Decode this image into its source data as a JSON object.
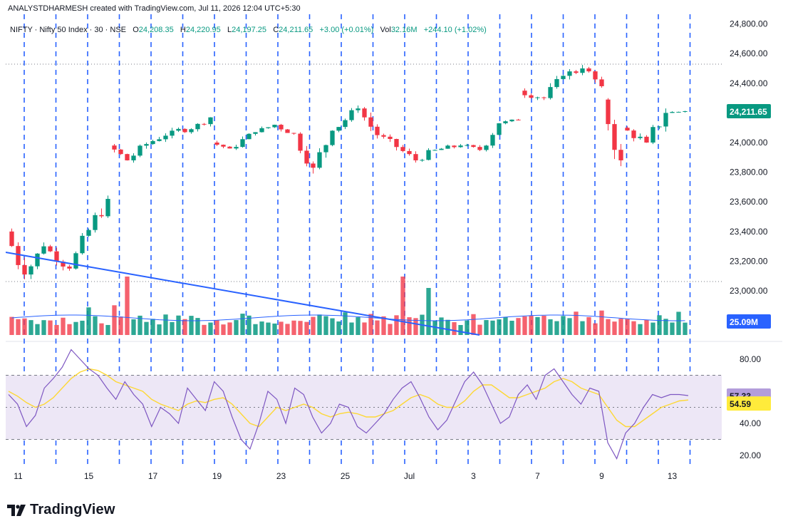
{
  "attribution": "ANALYSTDHARMESH created with TradingView.com, Jul 11, 2026 12:04 UTC+5:30",
  "legend": {
    "symbol": "NIFTY · Nifty 50 Index · 30 · NSE",
    "open_label": "O",
    "open": "24,208.35",
    "high_label": "H",
    "high": "24,220.95",
    "low_label": "L",
    "low": "24,197.25",
    "close_label": "C",
    "close": "24,211.65",
    "change": "+3.00 (+0.01%)",
    "vol_label": "Vol",
    "vol": "32.16M",
    "vol_change": "+244.10 (+1.02%)"
  },
  "logo": {
    "text": "TradingView"
  },
  "colors": {
    "up": "#089981",
    "down": "#f23645",
    "trendline": "#2962ff",
    "session_line": "#2962ff",
    "vol_ma": "#2962ff",
    "rsi": "#7e57c2",
    "rsi_ma": "#fdd835",
    "rsi_band": "#ede7f6",
    "price_badge": "#089981",
    "vol_badge": "#2962ff",
    "rsi_badge": "#b39ddb",
    "rsi_ma_badge": "#ffeb3b"
  },
  "chart_data": [
    {
      "type": "candlestick",
      "symbol": "NIFTY",
      "timeframe": "30",
      "ylim": [
        22900,
        24800
      ],
      "y_ticks": [
        "24,800.00",
        "24,600.00",
        "24,400.00",
        "24,200.00",
        "24,000.00",
        "23,800.00",
        "23,600.00",
        "23,400.00",
        "23,200.00",
        "23,000.00"
      ],
      "y_tick_values": [
        24800,
        24600,
        24400,
        24200,
        24000,
        23800,
        23600,
        23400,
        23200,
        23000
      ],
      "current_price_label": "24,211.65",
      "current_price": 24211.65,
      "x_ticks": [
        "11",
        "15",
        "17",
        "19",
        "23",
        "25",
        "Jul",
        "3",
        "7",
        "9",
        "13"
      ],
      "x_tick_bar_index": [
        1,
        12,
        22,
        32,
        42,
        52,
        62,
        72,
        82,
        92,
        103
      ],
      "sessions": [
        {
          "o": 23400,
          "h": 23420,
          "l": 23050,
          "c": 23110
        },
        {
          "o": 23110,
          "h": 23330,
          "l": 23070,
          "c": 23300
        },
        {
          "o": 23300,
          "h": 23310,
          "l": 23130,
          "c": 23150
        },
        {
          "o": 23150,
          "h": 23420,
          "l": 23140,
          "c": 23410
        },
        {
          "o": 23410,
          "h": 23650,
          "l": 23330,
          "c": 23620
        },
        {
          "o": 23980,
          "h": 24000,
          "l": 23830,
          "c": 23880
        },
        {
          "o": 23880,
          "h": 24010,
          "l": 23850,
          "c": 23990
        },
        {
          "o": 23990,
          "h": 24110,
          "l": 23970,
          "c": 24080
        },
        {
          "o": 24080,
          "h": 24150,
          "l": 24050,
          "c": 24090
        },
        {
          "o": 24090,
          "h": 24180,
          "l": 24070,
          "c": 24170
        },
        {
          "o": 24000,
          "h": 24020,
          "l": 23930,
          "c": 23960
        },
        {
          "o": 23960,
          "h": 24090,
          "l": 23950,
          "c": 24070
        },
        {
          "o": 24070,
          "h": 24150,
          "l": 24060,
          "c": 24120
        },
        {
          "o": 24120,
          "h": 24140,
          "l": 24020,
          "c": 24060
        },
        {
          "o": 24060,
          "h": 24070,
          "l": 23790,
          "c": 23830
        },
        {
          "o": 23830,
          "h": 24100,
          "l": 23820,
          "c": 24080
        },
        {
          "o": 24080,
          "h": 24250,
          "l": 24070,
          "c": 24230
        },
        {
          "o": 24230,
          "h": 24240,
          "l": 24020,
          "c": 24050
        },
        {
          "o": 24050,
          "h": 24060,
          "l": 23900,
          "c": 23970
        },
        {
          "o": 23970,
          "h": 24000,
          "l": 23860,
          "c": 23880
        },
        {
          "o": 23880,
          "h": 23980,
          "l": 23850,
          "c": 23950
        },
        {
          "o": 23950,
          "h": 24020,
          "l": 23930,
          "c": 23980
        },
        {
          "o": 23980,
          "h": 24020,
          "l": 23930,
          "c": 23950
        },
        {
          "o": 23950,
          "h": 24150,
          "l": 23940,
          "c": 24130
        },
        {
          "o": 24130,
          "h": 24170,
          "l": 24090,
          "c": 24150
        },
        {
          "o": 24350,
          "h": 24400,
          "l": 24260,
          "c": 24300
        },
        {
          "o": 24300,
          "h": 24470,
          "l": 24290,
          "c": 24450
        },
        {
          "o": 24450,
          "h": 24530,
          "l": 24360,
          "c": 24500
        },
        {
          "o": 24500,
          "h": 24510,
          "l": 24310,
          "c": 24380
        },
        {
          "o": 24290,
          "h": 24300,
          "l": 23800,
          "c": 23880
        },
        {
          "o": 24100,
          "h": 24130,
          "l": 23970,
          "c": 24000
        },
        {
          "o": 24000,
          "h": 24230,
          "l": 23950,
          "c": 24200
        },
        {
          "o": 24200,
          "h": 24225,
          "l": 24165,
          "c": 24211.65
        }
      ]
    },
    {
      "type": "bar",
      "name": "Volume",
      "last_value_label": "25.09M",
      "note": "volume histogram overlaid at bottom of price pane"
    },
    {
      "type": "line",
      "name": "RSI",
      "ylim": [
        10,
        95
      ],
      "y_ticks": [
        "80.00",
        "40.00",
        "20.00"
      ],
      "y_tick_values": [
        80,
        40,
        20
      ],
      "bands": [
        30,
        70
      ],
      "midline": 50,
      "rsi_value_label": "57.33",
      "rsi_value": 57.33,
      "rsi_ma_value_label": "54.59",
      "rsi_ma_value": 54.59,
      "rsi_points": [
        58,
        52,
        38,
        45,
        62,
        68,
        75,
        86,
        80,
        74,
        70,
        62,
        55,
        66,
        58,
        52,
        38,
        50,
        46,
        40,
        62,
        55,
        48,
        66,
        60,
        44,
        30,
        24,
        40,
        60,
        55,
        40,
        62,
        58,
        44,
        34,
        40,
        52,
        50,
        38,
        34,
        40,
        46,
        55,
        62,
        66,
        56,
        44,
        36,
        42,
        54,
        66,
        72,
        64,
        52,
        40,
        44,
        58,
        64,
        55,
        70,
        74,
        66,
        58,
        52,
        62,
        60,
        28,
        18,
        34,
        40,
        50,
        58,
        56,
        58,
        58,
        57.33
      ],
      "rsi_ma_points": [
        60,
        57,
        53,
        50,
        52,
        56,
        62,
        68,
        72,
        74,
        73,
        70,
        66,
        64,
        62,
        60,
        55,
        52,
        50,
        48,
        52,
        54,
        53,
        55,
        56,
        52,
        46,
        40,
        38,
        44,
        50,
        48,
        50,
        52,
        50,
        46,
        44,
        46,
        47,
        46,
        44,
        44,
        46,
        48,
        52,
        56,
        58,
        56,
        52,
        50,
        50,
        54,
        60,
        64,
        64,
        60,
        56,
        56,
        58,
        60,
        62,
        66,
        68,
        66,
        62,
        60,
        58,
        50,
        42,
        38,
        38,
        42,
        46,
        50,
        52,
        54,
        54.59
      ]
    }
  ]
}
